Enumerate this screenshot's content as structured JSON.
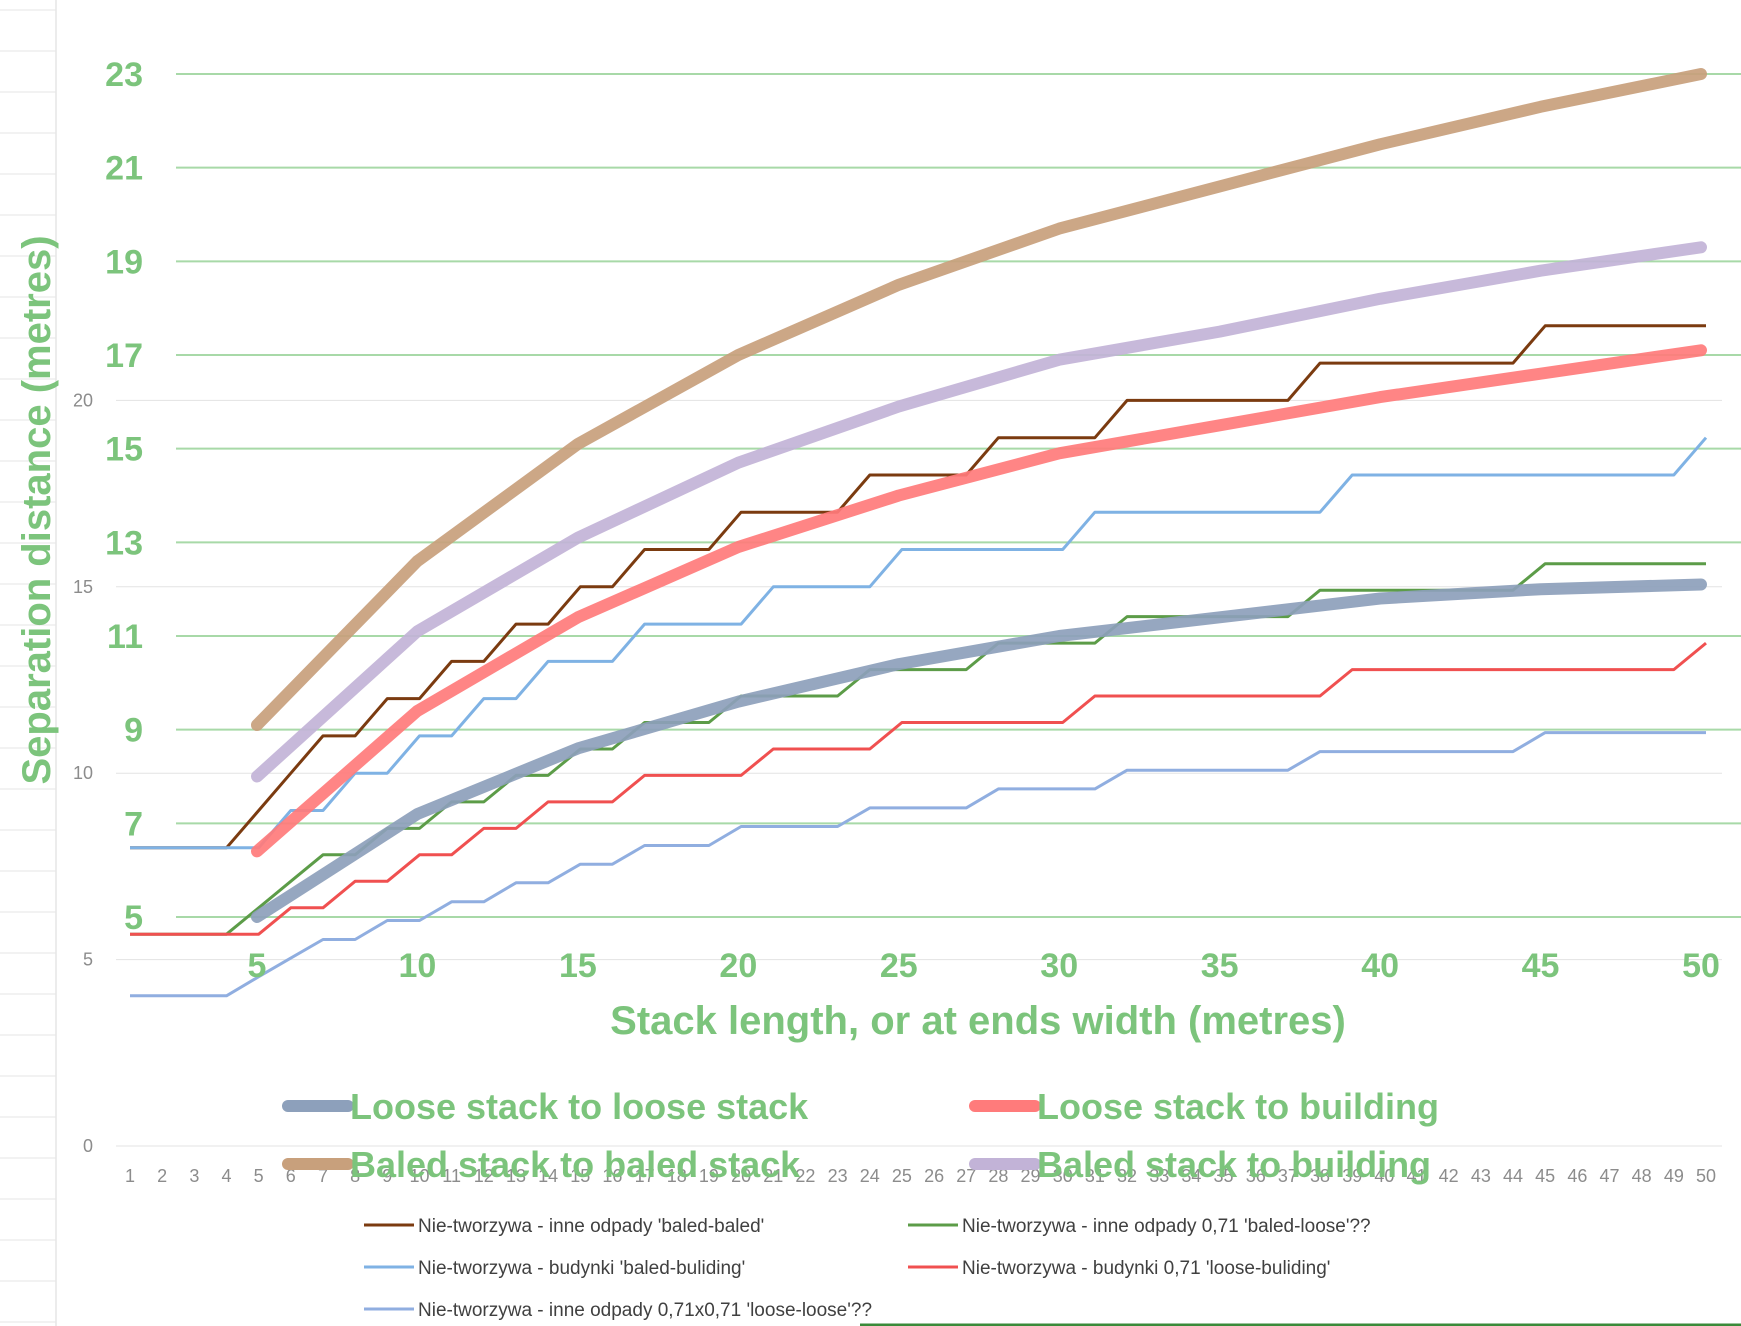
{
  "chart_data": [
    {
      "type": "line",
      "role": "overlay",
      "xlabel": "Stack length, or at ends width (metres)",
      "ylabel": "Separation distance (metres)",
      "xlim": [
        0.5,
        50.3
      ],
      "ylim": [
        3.2,
        24.5
      ],
      "xticks": [
        5,
        10,
        15,
        20,
        25,
        30,
        35,
        40,
        45,
        50
      ],
      "yticks": [
        5,
        7,
        9,
        11,
        13,
        15,
        17,
        19,
        21,
        23
      ],
      "grid": "horizontal",
      "legend_position": "bottom",
      "series": [
        {
          "name": "Loose stack to loose stack",
          "color": "#8da0bb",
          "x": [
            5,
            10,
            15,
            20,
            25,
            30,
            35,
            40,
            45,
            50
          ],
          "y": [
            5.0,
            7.2,
            8.6,
            9.6,
            10.4,
            11.0,
            11.4,
            11.8,
            12.0,
            12.1
          ]
        },
        {
          "name": "Loose stack to building",
          "color": "#ff7b7b",
          "x": [
            5,
            10,
            15,
            20,
            25,
            30,
            35,
            40,
            45,
            50
          ],
          "y": [
            6.4,
            9.4,
            11.4,
            12.9,
            14.0,
            14.9,
            15.5,
            16.1,
            16.6,
            17.1
          ]
        },
        {
          "name": "Baled stack to baled stack",
          "color": "#c8a07c",
          "x": [
            5,
            10,
            15,
            20,
            25,
            30,
            35,
            40,
            45,
            50
          ],
          "y": [
            9.1,
            12.6,
            15.1,
            17.0,
            18.5,
            19.7,
            20.6,
            21.5,
            22.3,
            23.0
          ]
        },
        {
          "name": "Baled stack to building",
          "color": "#c2b3d7",
          "x": [
            5,
            10,
            15,
            20,
            25,
            30,
            35,
            40,
            45,
            50
          ],
          "y": [
            8.0,
            11.1,
            13.1,
            14.7,
            15.9,
            16.9,
            17.5,
            18.2,
            18.8,
            19.3
          ]
        }
      ]
    },
    {
      "type": "line",
      "role": "underlying",
      "xticks": [
        "1",
        "2",
        "3",
        "4",
        "5",
        "6",
        "7",
        "8",
        "9",
        "10",
        "11",
        "12",
        "13",
        "14",
        "15",
        "16",
        "17",
        "18",
        "19",
        "20",
        "21",
        "22",
        "23",
        "24",
        "25",
        "26",
        "27",
        "28",
        "29",
        "30",
        "31",
        "32",
        "33",
        "34",
        "35",
        "36",
        "37",
        "38",
        "39",
        "40",
        "41",
        "42",
        "43",
        "44",
        "45",
        "46",
        "47",
        "48",
        "49",
        "50"
      ],
      "yticks": [
        0,
        5,
        10,
        15,
        20
      ],
      "ylim": [
        0,
        25
      ],
      "legend_position": "bottom",
      "series": [
        {
          "name": "Nie-tworzywa - inne odpady 'baled-baled'",
          "color": "#7b3b10",
          "x": [
            1,
            2,
            3,
            4,
            5,
            6,
            7,
            8,
            9,
            10,
            11,
            12,
            13,
            14,
            15,
            16,
            17,
            18,
            19,
            20,
            21,
            22,
            23,
            24,
            25,
            26,
            27,
            28,
            29,
            30,
            31,
            32,
            33,
            34,
            35,
            36,
            37,
            38,
            39,
            40,
            41,
            42,
            43,
            44,
            45,
            46,
            47,
            48,
            49,
            50
          ],
          "y": [
            8,
            8,
            8,
            8,
            9,
            10,
            11,
            11,
            12,
            12,
            13,
            13,
            14,
            14,
            15,
            15,
            16,
            16,
            16,
            17,
            17,
            17,
            17,
            18,
            18,
            18,
            18,
            19,
            19,
            19,
            19,
            20,
            20,
            20,
            20,
            20,
            20,
            21,
            21,
            21,
            21,
            21,
            21,
            21,
            22,
            22,
            22,
            22,
            22,
            22
          ]
        },
        {
          "name": "Nie-tworzywa - inne odpady 0,71 'baled-loose'??",
          "color": "#5c9c48",
          "x": [
            1,
            2,
            3,
            4,
            5,
            6,
            7,
            8,
            9,
            10,
            11,
            12,
            13,
            14,
            15,
            16,
            17,
            18,
            19,
            20,
            21,
            22,
            23,
            24,
            25,
            26,
            27,
            28,
            29,
            30,
            31,
            32,
            33,
            34,
            35,
            36,
            37,
            38,
            39,
            40,
            41,
            42,
            43,
            44,
            45,
            46,
            47,
            48,
            49,
            50
          ],
          "y": [
            5.68,
            5.68,
            5.68,
            5.68,
            6.39,
            7.1,
            7.81,
            7.81,
            8.52,
            8.52,
            9.23,
            9.23,
            9.94,
            9.94,
            10.65,
            10.65,
            11.36,
            11.36,
            11.36,
            12.07,
            12.07,
            12.07,
            12.07,
            12.78,
            12.78,
            12.78,
            12.78,
            13.49,
            13.49,
            13.49,
            13.49,
            14.2,
            14.2,
            14.2,
            14.2,
            14.2,
            14.2,
            14.91,
            14.91,
            14.91,
            14.91,
            14.91,
            14.91,
            14.91,
            15.62,
            15.62,
            15.62,
            15.62,
            15.62,
            15.62
          ]
        },
        {
          "name": "Nie-tworzywa - budynki 'baled-buliding'",
          "color": "#7fb2e4",
          "x": [
            1,
            2,
            3,
            4,
            5,
            6,
            7,
            8,
            9,
            10,
            11,
            12,
            13,
            14,
            15,
            16,
            17,
            18,
            19,
            20,
            21,
            22,
            23,
            24,
            25,
            26,
            27,
            28,
            29,
            30,
            31,
            32,
            33,
            34,
            35,
            36,
            37,
            38,
            39,
            40,
            41,
            42,
            43,
            44,
            45,
            46,
            47,
            48,
            49,
            50
          ],
          "y": [
            8,
            8,
            8,
            8,
            8,
            9,
            9,
            10,
            10,
            11,
            11,
            12,
            12,
            13,
            13,
            13,
            14,
            14,
            14,
            14,
            15,
            15,
            15,
            15,
            16,
            16,
            16,
            16,
            16,
            16,
            17,
            17,
            17,
            17,
            17,
            17,
            17,
            17,
            18,
            18,
            18,
            18,
            18,
            18,
            18,
            18,
            18,
            18,
            18,
            19
          ]
        },
        {
          "name": "Nie-tworzywa - budynki 0,71 'loose-buliding'",
          "color": "#f05050",
          "x": [
            1,
            2,
            3,
            4,
            5,
            6,
            7,
            8,
            9,
            10,
            11,
            12,
            13,
            14,
            15,
            16,
            17,
            18,
            19,
            20,
            21,
            22,
            23,
            24,
            25,
            26,
            27,
            28,
            29,
            30,
            31,
            32,
            33,
            34,
            35,
            36,
            37,
            38,
            39,
            40,
            41,
            42,
            43,
            44,
            45,
            46,
            47,
            48,
            49,
            50
          ],
          "y": [
            5.68,
            5.68,
            5.68,
            5.68,
            5.68,
            6.39,
            6.39,
            7.1,
            7.1,
            7.81,
            7.81,
            8.52,
            8.52,
            9.23,
            9.23,
            9.23,
            9.94,
            9.94,
            9.94,
            9.94,
            10.65,
            10.65,
            10.65,
            10.65,
            11.36,
            11.36,
            11.36,
            11.36,
            11.36,
            11.36,
            12.07,
            12.07,
            12.07,
            12.07,
            12.07,
            12.07,
            12.07,
            12.07,
            12.78,
            12.78,
            12.78,
            12.78,
            12.78,
            12.78,
            12.78,
            12.78,
            12.78,
            12.78,
            12.78,
            13.49
          ]
        },
        {
          "name": "Nie-tworzywa - inne odpady 0,71x0,71 'loose-loose'??",
          "color": "#90aee0",
          "x": [
            1,
            2,
            3,
            4,
            5,
            6,
            7,
            8,
            9,
            10,
            11,
            12,
            13,
            14,
            15,
            16,
            17,
            18,
            19,
            20,
            21,
            22,
            23,
            24,
            25,
            26,
            27,
            28,
            29,
            30,
            31,
            32,
            33,
            34,
            35,
            36,
            37,
            38,
            39,
            40,
            41,
            42,
            43,
            44,
            45,
            46,
            47,
            48,
            49,
            50
          ],
          "y": [
            4.03,
            4.03,
            4.03,
            4.03,
            4.54,
            5.04,
            5.54,
            5.54,
            6.05,
            6.05,
            6.55,
            6.55,
            7.06,
            7.06,
            7.56,
            7.56,
            8.06,
            8.06,
            8.06,
            8.57,
            8.57,
            8.57,
            8.57,
            9.07,
            9.07,
            9.07,
            9.07,
            9.58,
            9.58,
            9.58,
            9.58,
            10.08,
            10.08,
            10.08,
            10.08,
            10.08,
            10.08,
            10.58,
            10.58,
            10.58,
            10.58,
            10.58,
            10.58,
            10.58,
            11.09,
            11.09,
            11.09,
            11.09,
            11.09,
            11.09
          ]
        }
      ]
    }
  ]
}
